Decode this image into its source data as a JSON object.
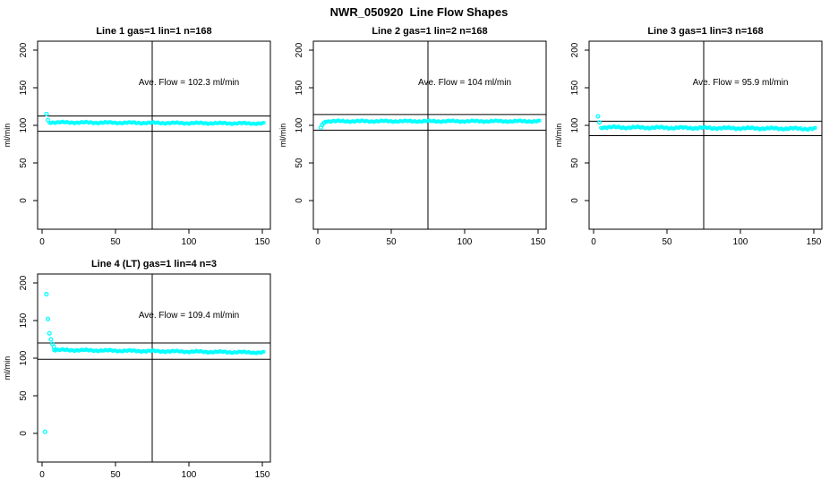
{
  "title": "NWR_050920  Line Flow Shapes",
  "chart_data": {
    "type": "scatter",
    "title": "NWR_050920  Line Flow Shapes",
    "ylabel": "ml/min",
    "xlabel": "",
    "x_ticks": [
      0,
      50,
      100,
      150
    ],
    "y_ticks": [
      0,
      50,
      100,
      150,
      200
    ],
    "x_range": [
      -3,
      155.5
    ],
    "y_range": [
      -38,
      210
    ],
    "grid": false,
    "legend": "none",
    "point_color": "#00FFFF",
    "line_color": "#000000",
    "vline_x": 75,
    "annotation_x": 100,
    "annotation_y": 157,
    "panels": [
      {
        "title": "Line 1 gas=1 lin=1 n=168",
        "annotation": "Ave. Flow =  102.3  ml/min",
        "ave_flow": 102.3,
        "ref_upper": 112.5,
        "ref_lower": 92.1,
        "leading_points": [
          [
            3,
            115
          ],
          [
            4,
            107
          ]
        ],
        "band": {
          "x_start": 5,
          "x_end": 151,
          "y_start": 104,
          "y_end": 102.5,
          "noise": 1.2
        }
      },
      {
        "title": "Line 2 gas=1 lin=2 n=168",
        "annotation": "Ave. Flow =  104  ml/min",
        "ave_flow": 104,
        "ref_upper": 114.4,
        "ref_lower": 93.6,
        "leading_points": [
          [
            2,
            97
          ],
          [
            3,
            100.5
          ],
          [
            4,
            103
          ]
        ],
        "band": {
          "x_start": 5,
          "x_end": 151,
          "y_start": 105.5,
          "y_end": 105.5,
          "noise": 1.2
        }
      },
      {
        "title": "Line 3 gas=1 lin=3 n=168",
        "annotation": "Ave. Flow =  95.9  ml/min",
        "ave_flow": 95.9,
        "ref_upper": 105.5,
        "ref_lower": 86.3,
        "leading_points": [
          [
            3,
            112
          ],
          [
            4,
            104
          ]
        ],
        "band": {
          "x_start": 5,
          "x_end": 151,
          "y_start": 97.5,
          "y_end": 95.5,
          "noise": 1.6
        }
      },
      {
        "title": "Line 4 (LT) gas=1 lin=4 n=3",
        "annotation": "Ave. Flow =  109.4  ml/min",
        "ave_flow": 109.4,
        "ref_upper": 120.3,
        "ref_lower": 98.5,
        "leading_points": [
          [
            2,
            2
          ],
          [
            3,
            185
          ],
          [
            4,
            152
          ],
          [
            5,
            133
          ],
          [
            6,
            125
          ],
          [
            7,
            119
          ],
          [
            8,
            115
          ]
        ],
        "band": {
          "x_start": 8,
          "x_end": 151,
          "y_start": 111,
          "y_end": 107.5,
          "noise": 1.3
        }
      }
    ]
  }
}
